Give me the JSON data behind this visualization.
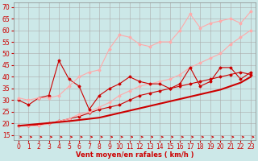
{
  "xlabel": "Vent moyen/en rafales ( km/h )",
  "bg_color": "#cce8e8",
  "grid_color": "#aaaaaa",
  "xlim": [
    -0.5,
    23.5
  ],
  "ylim": [
    13,
    72
  ],
  "yticks": [
    15,
    20,
    25,
    30,
    35,
    40,
    45,
    50,
    55,
    60,
    65,
    70
  ],
  "xticks": [
    0,
    1,
    2,
    3,
    4,
    5,
    6,
    7,
    8,
    9,
    10,
    11,
    12,
    13,
    14,
    15,
    16,
    17,
    18,
    19,
    20,
    21,
    22,
    23
  ],
  "line1_x": [
    0,
    1,
    2,
    3,
    4,
    5,
    6,
    7,
    8,
    9,
    10,
    11,
    12,
    13,
    14,
    15,
    16,
    17,
    18,
    19,
    20,
    21,
    22,
    23
  ],
  "line1_y": [
    19,
    19.4,
    19.8,
    20.2,
    20.6,
    21,
    21.5,
    22,
    22.5,
    23.5,
    24.5,
    25.5,
    26.5,
    27.5,
    28.5,
    29.5,
    30.5,
    31.5,
    32.5,
    33.5,
    34.5,
    36,
    37.5,
    40
  ],
  "line1_color": "#cc0000",
  "line1_lw": 1.5,
  "line2_x": [
    0,
    1,
    2,
    3,
    4,
    5,
    6,
    7,
    8,
    9,
    10,
    11,
    12,
    13,
    14,
    15,
    16,
    17,
    18,
    19,
    20,
    21,
    22,
    23
  ],
  "line2_y": [
    19,
    19,
    19.5,
    20,
    21,
    22,
    23,
    24.5,
    26,
    27,
    28,
    30,
    32,
    33,
    34,
    35,
    36,
    37,
    38,
    39,
    40,
    41,
    42,
    41
  ],
  "line2_color": "#cc0000",
  "line2_lw": 0.8,
  "line2_marker": "D",
  "line2_ms": 1.5,
  "line3_x": [
    0,
    1,
    2,
    3,
    4,
    5,
    6,
    7,
    8,
    9,
    10,
    11,
    12,
    13,
    14,
    15,
    16,
    17,
    18,
    19,
    20,
    21,
    22,
    23
  ],
  "line3_y": [
    19,
    19,
    19,
    20,
    21,
    22,
    24,
    25,
    27,
    29,
    32,
    34,
    36,
    37,
    38,
    39,
    41,
    44,
    46,
    48,
    50,
    54,
    57,
    60
  ],
  "line3_color": "#ffaaaa",
  "line3_lw": 0.8,
  "line3_marker": "D",
  "line3_ms": 1.5,
  "line4_x": [
    0,
    1,
    2,
    3,
    4,
    5,
    6,
    7,
    8,
    9,
    10,
    11,
    12,
    13,
    14,
    15,
    16,
    17,
    18,
    19,
    20,
    21,
    22,
    23
  ],
  "line4_y": [
    30,
    28,
    31,
    32,
    47,
    39,
    36,
    26,
    32,
    35,
    37,
    40,
    38,
    37,
    37,
    35,
    37,
    44,
    36,
    38,
    44,
    44,
    39,
    42
  ],
  "line4_color": "#cc0000",
  "line4_lw": 0.8,
  "line4_marker": "D",
  "line4_ms": 1.5,
  "line5_x": [
    0,
    1,
    2,
    3,
    4,
    5,
    6,
    7,
    8,
    9,
    10,
    11,
    12,
    13,
    14,
    15,
    16,
    17,
    18,
    19,
    20,
    21,
    22,
    23
  ],
  "line5_y": [
    31,
    30,
    31,
    31,
    32,
    36,
    40,
    42,
    43,
    52,
    58,
    57,
    54,
    53,
    55,
    55,
    60,
    67,
    61,
    63,
    64,
    65,
    63,
    68
  ],
  "line5_color": "#ffaaaa",
  "line5_lw": 0.8,
  "line5_marker": "D",
  "line5_ms": 1.5,
  "arrow_color": "#cc0000",
  "tick_color": "#cc0000",
  "label_color": "#cc0000",
  "label_fontsize": 5.5,
  "xlabel_fontsize": 6.0
}
